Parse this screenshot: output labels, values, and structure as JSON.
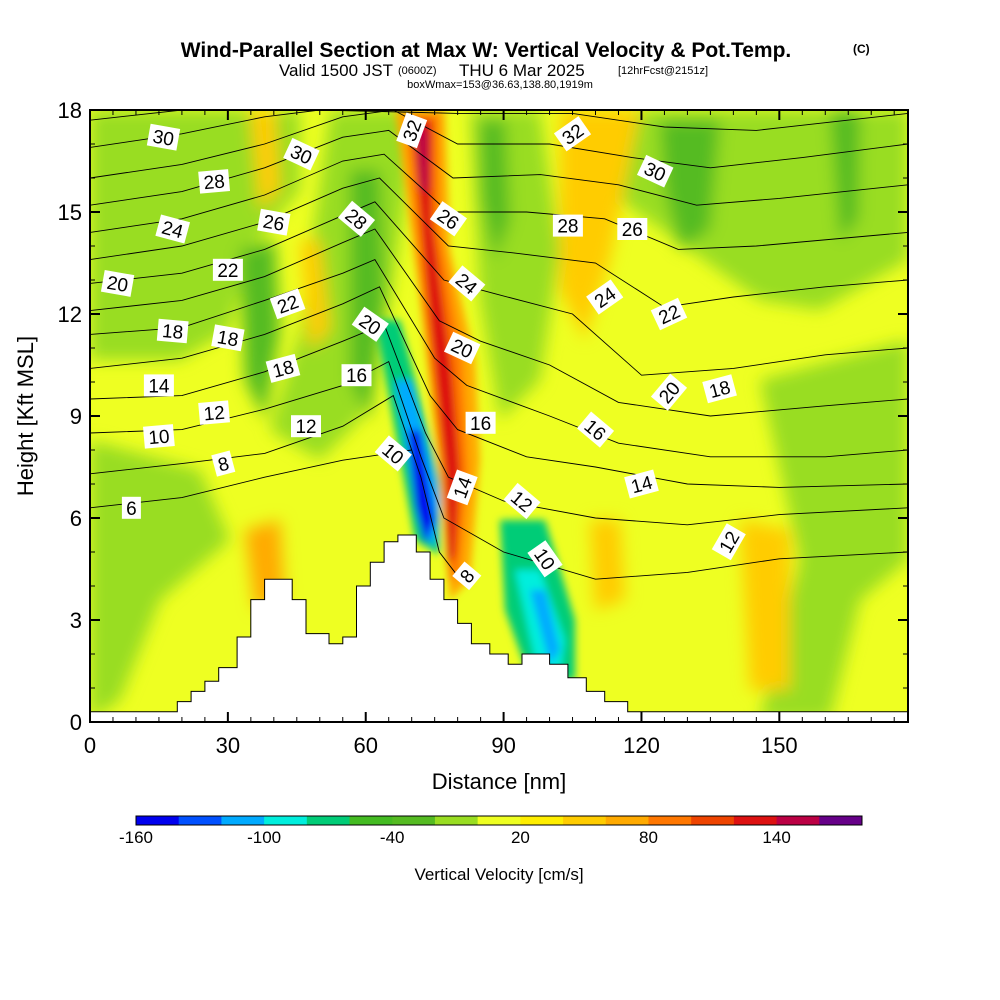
{
  "header": {
    "title": "Wind-Parallel Section at Max W: Vertical Velocity & Pot.Temp.",
    "copyright": "(C)",
    "valid_prefix": "Valid 1500 JST",
    "valid_zulu": "(0600Z)",
    "valid_date": "THU 6 Mar 2025",
    "forecast": "[12hrFcst@2151z]",
    "boxwmax": "boxWmax=153@36.63,138.80,1919m"
  },
  "chart_data": {
    "type": "heatmap",
    "xlabel": "Distance [nm]",
    "ylabel": "Height [Kft MSL]",
    "xlim": [
      0,
      178
    ],
    "ylim": [
      0,
      18
    ],
    "x_ticks": [
      0,
      30,
      60,
      90,
      120,
      150
    ],
    "y_ticks": [
      0,
      3,
      6,
      9,
      12,
      15,
      18
    ],
    "terrain_kft": [
      [
        0,
        0.3
      ],
      [
        19,
        0.3
      ],
      [
        19,
        0.6
      ],
      [
        22,
        0.6
      ],
      [
        22,
        0.9
      ],
      [
        25,
        0.9
      ],
      [
        25,
        1.2
      ],
      [
        28,
        1.2
      ],
      [
        28,
        1.6
      ],
      [
        32,
        1.6
      ],
      [
        32,
        2.5
      ],
      [
        35,
        2.5
      ],
      [
        35,
        3.6
      ],
      [
        38,
        3.6
      ],
      [
        38,
        4.2
      ],
      [
        44,
        4.2
      ],
      [
        44,
        3.6
      ],
      [
        47,
        3.6
      ],
      [
        47,
        2.6
      ],
      [
        52,
        2.6
      ],
      [
        52,
        2.3
      ],
      [
        55,
        2.3
      ],
      [
        55,
        2.5
      ],
      [
        58,
        2.5
      ],
      [
        58,
        4.0
      ],
      [
        61,
        4.0
      ],
      [
        61,
        4.7
      ],
      [
        64,
        4.7
      ],
      [
        64,
        5.3
      ],
      [
        67,
        5.3
      ],
      [
        67,
        5.5
      ],
      [
        71,
        5.5
      ],
      [
        71,
        5.0
      ],
      [
        74,
        5.0
      ],
      [
        74,
        4.2
      ],
      [
        77,
        4.2
      ],
      [
        77,
        3.6
      ],
      [
        80,
        3.6
      ],
      [
        80,
        2.9
      ],
      [
        83,
        2.9
      ],
      [
        83,
        2.3
      ],
      [
        87,
        2.3
      ],
      [
        87,
        2.0
      ],
      [
        91,
        2.0
      ],
      [
        91,
        1.7
      ],
      [
        94,
        1.7
      ],
      [
        94,
        2.0
      ],
      [
        100,
        2.0
      ],
      [
        100,
        1.7
      ],
      [
        104,
        1.7
      ],
      [
        104,
        1.3
      ],
      [
        108,
        1.3
      ],
      [
        108,
        0.9
      ],
      [
        112,
        0.9
      ],
      [
        112,
        0.6
      ],
      [
        117,
        0.6
      ],
      [
        117,
        0.3
      ],
      [
        178,
        0.3
      ]
    ],
    "colorbar": {
      "label": "Vertical Velocity [cm/s]",
      "tick_labels": [
        "-160",
        "-100",
        "-40",
        "20",
        "80",
        "140"
      ],
      "levels": [
        -160,
        -140,
        -120,
        -100,
        -80,
        -60,
        -40,
        -20,
        0,
        20,
        40,
        60,
        80,
        100,
        120,
        140,
        160
      ],
      "colors": [
        "#0000ee",
        "#0050ff",
        "#00aaff",
        "#00eedd",
        "#00cc77",
        "#44bb22",
        "#55bb22",
        "#99dd22",
        "#eeff22",
        "#ffee00",
        "#ffcc00",
        "#ffaa00",
        "#ff7700",
        "#ee4400",
        "#dd1111",
        "#bb0044",
        "#660088"
      ]
    },
    "isentropes": [
      {
        "label": "6",
        "pts": [
          [
            0,
            6.3
          ],
          [
            20,
            6.6
          ],
          [
            38,
            7.2
          ],
          [
            55,
            7.7
          ],
          [
            70,
            8.0
          ]
        ]
      },
      {
        "label": "8",
        "pts": [
          [
            0,
            7.3
          ],
          [
            20,
            7.6
          ],
          [
            38,
            7.9
          ],
          [
            55,
            8.7
          ],
          [
            66,
            9.6
          ],
          [
            72,
            7.2
          ],
          [
            76,
            5.0
          ],
          [
            80,
            4.3
          ]
        ]
      },
      {
        "label": "10",
        "pts": [
          [
            0,
            8.5
          ],
          [
            20,
            8.6
          ],
          [
            38,
            9.2
          ],
          [
            55,
            9.9
          ],
          [
            65,
            10.6
          ],
          [
            72,
            7.8
          ],
          [
            77,
            6.0
          ],
          [
            90,
            5.0
          ],
          [
            110,
            4.2
          ],
          [
            130,
            4.4
          ],
          [
            150,
            4.8
          ],
          [
            178,
            5.0
          ]
        ]
      },
      {
        "label": "12",
        "pts": [
          [
            0,
            9.5
          ],
          [
            20,
            9.6
          ],
          [
            38,
            10.3
          ],
          [
            55,
            11.2
          ],
          [
            64,
            11.7
          ],
          [
            73,
            8.5
          ],
          [
            78,
            7.2
          ],
          [
            90,
            6.5
          ],
          [
            110,
            6.0
          ],
          [
            130,
            5.8
          ],
          [
            150,
            6.1
          ],
          [
            178,
            6.3
          ]
        ]
      },
      {
        "label": "14",
        "pts": [
          [
            0,
            10.4
          ],
          [
            20,
            10.7
          ],
          [
            38,
            11.4
          ],
          [
            55,
            12.3
          ],
          [
            63,
            12.8
          ],
          [
            74,
            9.6
          ],
          [
            80,
            8.6
          ],
          [
            95,
            7.8
          ],
          [
            110,
            7.5
          ],
          [
            130,
            7.0
          ],
          [
            150,
            6.9
          ],
          [
            178,
            7.0
          ]
        ]
      },
      {
        "label": "16",
        "pts": [
          [
            0,
            11.4
          ],
          [
            20,
            11.6
          ],
          [
            38,
            12.4
          ],
          [
            55,
            13.2
          ],
          [
            62,
            13.6
          ],
          [
            75,
            10.7
          ],
          [
            82,
            9.9
          ],
          [
            100,
            9.0
          ],
          [
            115,
            8.2
          ],
          [
            135,
            7.8
          ],
          [
            160,
            7.8
          ],
          [
            178,
            8.0
          ]
        ]
      },
      {
        "label": "18",
        "pts": [
          [
            0,
            12.1
          ],
          [
            20,
            12.4
          ],
          [
            38,
            13.1
          ],
          [
            55,
            14.1
          ],
          [
            62,
            14.5
          ],
          [
            76,
            11.8
          ],
          [
            85,
            11.2
          ],
          [
            100,
            10.5
          ],
          [
            115,
            9.4
          ],
          [
            135,
            9.0
          ],
          [
            160,
            9.3
          ],
          [
            178,
            9.5
          ]
        ]
      },
      {
        "label": "20",
        "pts": [
          [
            0,
            12.9
          ],
          [
            20,
            13.2
          ],
          [
            38,
            13.9
          ],
          [
            55,
            14.9
          ],
          [
            62,
            15.3
          ],
          [
            77,
            13.0
          ],
          [
            88,
            12.6
          ],
          [
            105,
            12.0
          ],
          [
            120,
            10.2
          ],
          [
            140,
            10.4
          ],
          [
            160,
            10.8
          ],
          [
            178,
            11.0
          ]
        ]
      },
      {
        "label": "22",
        "pts": [
          [
            0,
            13.6
          ],
          [
            20,
            14.0
          ],
          [
            38,
            14.7
          ],
          [
            55,
            15.7
          ],
          [
            63,
            16.0
          ],
          [
            78,
            14.0
          ],
          [
            92,
            13.8
          ],
          [
            110,
            13.5
          ],
          [
            125,
            12.2
          ],
          [
            140,
            12.5
          ],
          [
            160,
            12.8
          ],
          [
            178,
            13.0
          ]
        ]
      },
      {
        "label": "24",
        "pts": [
          [
            0,
            14.4
          ],
          [
            20,
            14.8
          ],
          [
            38,
            15.5
          ],
          [
            55,
            16.5
          ],
          [
            64,
            16.7
          ],
          [
            78,
            15.0
          ],
          [
            95,
            15.0
          ],
          [
            112,
            14.8
          ],
          [
            128,
            13.9
          ],
          [
            145,
            14.0
          ],
          [
            178,
            14.4
          ]
        ]
      },
      {
        "label": "26",
        "pts": [
          [
            0,
            15.2
          ],
          [
            20,
            15.6
          ],
          [
            38,
            16.3
          ],
          [
            55,
            17.2
          ],
          [
            65,
            17.4
          ],
          [
            79,
            16.0
          ],
          [
            98,
            16.1
          ],
          [
            115,
            15.8
          ],
          [
            132,
            15.2
          ],
          [
            150,
            15.4
          ],
          [
            178,
            15.8
          ]
        ]
      },
      {
        "label": "28",
        "pts": [
          [
            0,
            16.0
          ],
          [
            20,
            16.4
          ],
          [
            38,
            17.0
          ],
          [
            55,
            17.8
          ],
          [
            66,
            18.0
          ],
          [
            80,
            17.0
          ],
          [
            100,
            17.0
          ],
          [
            118,
            16.6
          ],
          [
            135,
            16.3
          ],
          [
            155,
            16.6
          ],
          [
            178,
            17.0
          ]
        ]
      },
      {
        "label": "30",
        "pts": [
          [
            0,
            16.9
          ],
          [
            20,
            17.3
          ],
          [
            38,
            17.8
          ],
          [
            50,
            18.0
          ],
          [
            80,
            17.9
          ],
          [
            105,
            17.9
          ],
          [
            125,
            17.5
          ],
          [
            145,
            17.4
          ],
          [
            178,
            17.9
          ]
        ]
      },
      {
        "label": "32",
        "pts": [
          [
            0,
            17.7
          ],
          [
            20,
            18.0
          ],
          [
            70,
            18.0
          ],
          [
            110,
            18.0
          ],
          [
            140,
            18.0
          ],
          [
            178,
            18.0
          ]
        ]
      }
    ],
    "contour_labels": [
      {
        "text": "30",
        "x": 16,
        "y": 17.2,
        "rot": 10
      },
      {
        "text": "30",
        "x": 46,
        "y": 16.7,
        "rot": 25
      },
      {
        "text": "32",
        "x": 70,
        "y": 17.4,
        "rot": -70
      },
      {
        "text": "32",
        "x": 105,
        "y": 17.3,
        "rot": -35
      },
      {
        "text": "30",
        "x": 123,
        "y": 16.2,
        "rot": 25
      },
      {
        "text": "28",
        "x": 27,
        "y": 15.9,
        "rot": -5
      },
      {
        "text": "28",
        "x": 58,
        "y": 14.8,
        "rot": 40
      },
      {
        "text": "26",
        "x": 78,
        "y": 14.8,
        "rot": 35
      },
      {
        "text": "26",
        "x": 40,
        "y": 14.7,
        "rot": 10
      },
      {
        "text": "28",
        "x": 104,
        "y": 14.6,
        "rot": 0
      },
      {
        "text": "26",
        "x": 118,
        "y": 14.5,
        "rot": 0
      },
      {
        "text": "24",
        "x": 18,
        "y": 14.5,
        "rot": 15
      },
      {
        "text": "22",
        "x": 30,
        "y": 13.3,
        "rot": 0
      },
      {
        "text": "24",
        "x": 82,
        "y": 12.9,
        "rot": 40
      },
      {
        "text": "24",
        "x": 112,
        "y": 12.5,
        "rot": -35
      },
      {
        "text": "20",
        "x": 6,
        "y": 12.9,
        "rot": 10
      },
      {
        "text": "22",
        "x": 43,
        "y": 12.3,
        "rot": -20
      },
      {
        "text": "22",
        "x": 126,
        "y": 12.0,
        "rot": -25
      },
      {
        "text": "18",
        "x": 18,
        "y": 11.5,
        "rot": 5
      },
      {
        "text": "20",
        "x": 61,
        "y": 11.7,
        "rot": 35
      },
      {
        "text": "18",
        "x": 30,
        "y": 11.3,
        "rot": 10
      },
      {
        "text": "20",
        "x": 81,
        "y": 11.0,
        "rot": 25
      },
      {
        "text": "18",
        "x": 42,
        "y": 10.4,
        "rot": -15
      },
      {
        "text": "16",
        "x": 58,
        "y": 10.2,
        "rot": 0
      },
      {
        "text": "14",
        "x": 15,
        "y": 9.9,
        "rot": 0
      },
      {
        "text": "20",
        "x": 126,
        "y": 9.7,
        "rot": -50
      },
      {
        "text": "18",
        "x": 137,
        "y": 9.8,
        "rot": -15
      },
      {
        "text": "12",
        "x": 27,
        "y": 9.1,
        "rot": -5
      },
      {
        "text": "16",
        "x": 85,
        "y": 8.8,
        "rot": 0
      },
      {
        "text": "12",
        "x": 47,
        "y": 8.7,
        "rot": 0
      },
      {
        "text": "16",
        "x": 110,
        "y": 8.6,
        "rot": 40
      },
      {
        "text": "10",
        "x": 15,
        "y": 8.4,
        "rot": -5
      },
      {
        "text": "10",
        "x": 66,
        "y": 7.9,
        "rot": 40
      },
      {
        "text": "8",
        "x": 29,
        "y": 7.6,
        "rot": -15
      },
      {
        "text": "14",
        "x": 81,
        "y": 6.9,
        "rot": -70
      },
      {
        "text": "14",
        "x": 120,
        "y": 7.0,
        "rot": -15
      },
      {
        "text": "12",
        "x": 94,
        "y": 6.5,
        "rot": 40
      },
      {
        "text": "6",
        "x": 9,
        "y": 6.3,
        "rot": 0
      },
      {
        "text": "12",
        "x": 139,
        "y": 5.3,
        "rot": -60
      },
      {
        "text": "10",
        "x": 99,
        "y": 4.8,
        "rot": 55
      },
      {
        "text": "8",
        "x": 82,
        "y": 4.3,
        "rot": -50
      }
    ]
  }
}
